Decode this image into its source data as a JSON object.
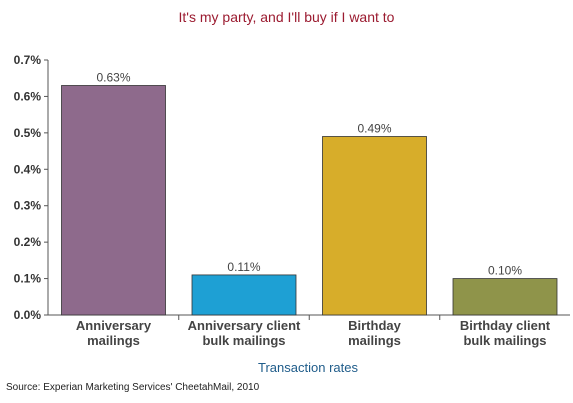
{
  "chart_data": {
    "type": "bar",
    "title": "It's my party, and I'll buy if I want to",
    "xlabel": "Transaction rates",
    "ylabel": "",
    "ylim": [
      0,
      0.7
    ],
    "yticks": [
      "0.0%",
      "0.1%",
      "0.2%",
      "0.3%",
      "0.4%",
      "0.5%",
      "0.6%",
      "0.7%"
    ],
    "categories": [
      [
        "Anniversary",
        "mailings"
      ],
      [
        "Anniversary client",
        "bulk mailings"
      ],
      [
        "Birthday",
        "mailings"
      ],
      [
        "Birthday client",
        "bulk mailings"
      ]
    ],
    "values": [
      0.63,
      0.11,
      0.49,
      0.1
    ],
    "value_labels": [
      "0.63%",
      "0.11%",
      "0.49%",
      "0.10%"
    ],
    "colors": [
      "#8e6a8c",
      "#1ea0d4",
      "#d7ad2a",
      "#8f944a"
    ],
    "grid": false,
    "legend": "none"
  },
  "source": "Source: Experian Marketing Services' CheetahMail, 2010"
}
